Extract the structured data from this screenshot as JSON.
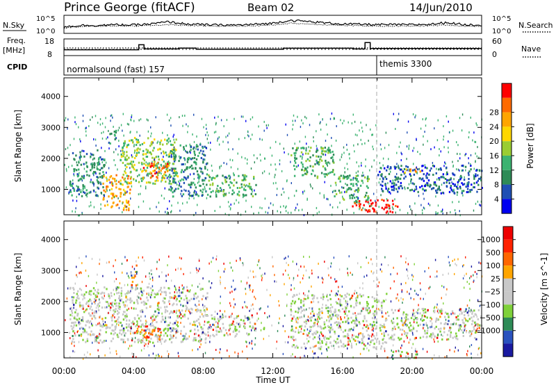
{
  "header": {
    "station": "Prince George (fitACF)",
    "beam": "Beam 02",
    "date": "14/Jun/2010"
  },
  "side_labels": {
    "nsky": "N.Sky",
    "freq": "Freq.",
    "freq_unit": "[MHz]",
    "cpid": "CPID",
    "nsearch": "N.Search",
    "nave": "Nave"
  },
  "noise_axis": {
    "left_top": "10^5",
    "left_bottom": "10^0",
    "right_top": "10^5",
    "right_bottom": "10^0"
  },
  "freq_axis": {
    "left_top": "18",
    "left_bottom": "8",
    "right_top": "60",
    "right_bottom": "0"
  },
  "cpid_labels": {
    "first": "normalsound (fast) 157",
    "second": "themis 3300"
  },
  "colors": {
    "power": [
      "#0000f0",
      "#1f4fb4",
      "#2e8b57",
      "#3cb371",
      "#9acd32",
      "#ffd700",
      "#ffa500",
      "#ff6a00",
      "#ff0000"
    ],
    "velocity": [
      "#1a1aa0",
      "#2a52be",
      "#2e8b57",
      "#7fd13a",
      "#c8c8c8",
      "#c8c8c8",
      "#ffa500",
      "#ff6600",
      "#ff2200",
      "#ee0000"
    ]
  },
  "chart_data": [
    {
      "type": "heatmap",
      "name": "power-panel",
      "xlabel": "",
      "ylabel": "Slant Range [km]",
      "x_ticks": [
        "00:00",
        "04:00",
        "08:00",
        "12:00",
        "16:00",
        "20:00",
        "00:00"
      ],
      "xlim": [
        0,
        24
      ],
      "ylim": [
        180,
        4600
      ],
      "y_ticks": [
        1000,
        2000,
        3000,
        4000
      ],
      "colorbar_label": "Power [dB]",
      "colorbar_ticks": [
        "4",
        "8",
        "12",
        "16",
        "20",
        "24",
        "28"
      ],
      "regions": [
        {
          "t0": 0.3,
          "t1": 2.3,
          "r0": 800,
          "r1": 2300,
          "v": 2
        },
        {
          "t0": 2.2,
          "t1": 3.8,
          "r0": 350,
          "r1": 1500,
          "v": 6
        },
        {
          "t0": 2.5,
          "t1": 3.0,
          "r0": 2500,
          "r1": 3000,
          "v": 2
        },
        {
          "t0": 3.2,
          "t1": 6.5,
          "r0": 1200,
          "r1": 2700,
          "v": 4
        },
        {
          "t0": 4.5,
          "t1": 6.2,
          "r0": 1400,
          "r1": 1900,
          "v": 7
        },
        {
          "t0": 6.0,
          "t1": 8.2,
          "r0": 800,
          "r1": 2500,
          "v": 2
        },
        {
          "t0": 8.2,
          "t1": 11.0,
          "r0": 800,
          "r1": 1500,
          "v": 3
        },
        {
          "t0": 13.0,
          "t1": 15.5,
          "r0": 1400,
          "r1": 2400,
          "v": 3
        },
        {
          "t0": 15.5,
          "t1": 17.5,
          "r0": 600,
          "r1": 1500,
          "v": 3
        },
        {
          "t0": 16.5,
          "t1": 19.2,
          "r0": 280,
          "r1": 700,
          "v": 8
        },
        {
          "t0": 18.0,
          "t1": 24.0,
          "r0": 900,
          "r1": 1800,
          "v": 1
        },
        {
          "t0": 19.5,
          "t1": 20.5,
          "r0": 1550,
          "r1": 1750,
          "v": 6
        }
      ]
    },
    {
      "type": "heatmap",
      "name": "velocity-panel",
      "xlabel": "Time UT",
      "ylabel": "Slant Range [km]",
      "x_ticks": [
        "00:00",
        "04:00",
        "08:00",
        "12:00",
        "16:00",
        "20:00",
        "00:00"
      ],
      "xlim": [
        0,
        24
      ],
      "ylim": [
        180,
        4600
      ],
      "y_ticks": [
        1000,
        2000,
        3000,
        4000
      ],
      "colorbar_label": "Velocity [m s^-1]",
      "colorbar_ticks": [
        "1000",
        "500",
        "100",
        "25",
        "−25",
        "−100",
        "−500",
        "−1000"
      ],
      "regions": [
        {
          "t0": 0.3,
          "t1": 8.2,
          "r0": 700,
          "r1": 2500,
          "v": 4
        },
        {
          "t0": 3.8,
          "t1": 4.2,
          "r0": 2400,
          "r1": 3200,
          "v": 6
        },
        {
          "t0": 4.0,
          "t1": 5.5,
          "r0": 800,
          "r1": 1300,
          "v": 7
        },
        {
          "t0": 8.2,
          "t1": 11.0,
          "r0": 900,
          "r1": 1600,
          "v": 4
        },
        {
          "t0": 11.3,
          "t1": 11.6,
          "r0": 950,
          "r1": 1200,
          "v": 3
        },
        {
          "t0": 13.0,
          "t1": 18.5,
          "r0": 500,
          "r1": 2300,
          "v": 4
        },
        {
          "t0": 18.5,
          "t1": 24.0,
          "r0": 800,
          "r1": 1800,
          "v": 4
        },
        {
          "t0": 18.8,
          "t1": 20.3,
          "r0": 180,
          "r1": 450,
          "v": 3
        }
      ]
    }
  ],
  "noise_series": [
    {
      "name": "N.Sky",
      "values": [
        1.8,
        2.2,
        2.2,
        2.4,
        2.3,
        2.6,
        3.2,
        2.6,
        2.4,
        2.3,
        2.3,
        2.5,
        2.8,
        3.6,
        3.3,
        2.9,
        2.6,
        2.5,
        2.4,
        2.4,
        2.4,
        2.5,
        3.0,
        2.4,
        2.3
      ]
    },
    {
      "name": "N.Search",
      "values": [
        1.5,
        1.9,
        2.0,
        2.1,
        2.0,
        2.2,
        2.4,
        2.2,
        2.1,
        2.0,
        2.0,
        2.1,
        2.3,
        2.8,
        2.6,
        2.4,
        2.2,
        2.1,
        2.0,
        2.0,
        2.0,
        2.1,
        2.3,
        2.0,
        2.0
      ]
    }
  ],
  "freq_series": {
    "name": "Freq.",
    "x": [
      0,
      3.8,
      4.3,
      4.6,
      6.6,
      7.6,
      12.6,
      16.6,
      17.3,
      17.6,
      18.0,
      24
    ],
    "values": [
      11.5,
      11.5,
      14.5,
      12.0,
      12.5,
      11.8,
      12.4,
      12.0,
      15.8,
      12.3,
      12.3,
      12.3
    ]
  }
}
